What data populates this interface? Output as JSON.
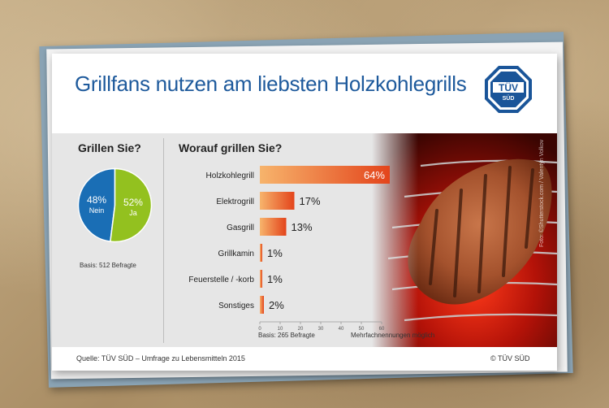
{
  "title": "Grillfans nutzen am liebsten Holzkohlegrills",
  "logo": {
    "line1": "TÜV",
    "line2": "SÜD"
  },
  "source": "Quelle: TÜV SÜD – Umfrage zu Lebensmitteln 2015",
  "copyright": "© TÜV SÜD",
  "photo_credit": "Foto: ©Shutterstock.com / Valentyn Volkov",
  "colors": {
    "title": "#1e5a9c",
    "pie_nein": "#1a6eb5",
    "pie_ja": "#93c11f",
    "bar_start": "#f7b46c",
    "bar_end": "#e3441b"
  },
  "chart_data": [
    {
      "type": "pie",
      "title": "Grillen Sie?",
      "slices": [
        {
          "label": "Nein",
          "value": 48,
          "text": "48%"
        },
        {
          "label": "Ja",
          "value": 52,
          "text": "52%"
        }
      ],
      "basis": "Basis: 512 Befragte"
    },
    {
      "type": "bar",
      "orientation": "horizontal",
      "title": "Worauf grillen Sie?",
      "categories": [
        "Holzkohlegrill",
        "Elektrogrill",
        "Gasgrill",
        "Grillkamin",
        "Feuerstelle / -korb",
        "Sonstiges"
      ],
      "values": [
        64,
        17,
        13,
        1,
        1,
        2
      ],
      "value_labels": [
        "64%",
        "17%",
        "13%",
        "1%",
        "1%",
        "2%"
      ],
      "xlim": [
        0,
        60
      ],
      "xticks": [
        0,
        10,
        20,
        30,
        40,
        50,
        60
      ],
      "basis": "Basis: 265 Befragte",
      "note": "Mehrfachnennungen möglich"
    }
  ]
}
